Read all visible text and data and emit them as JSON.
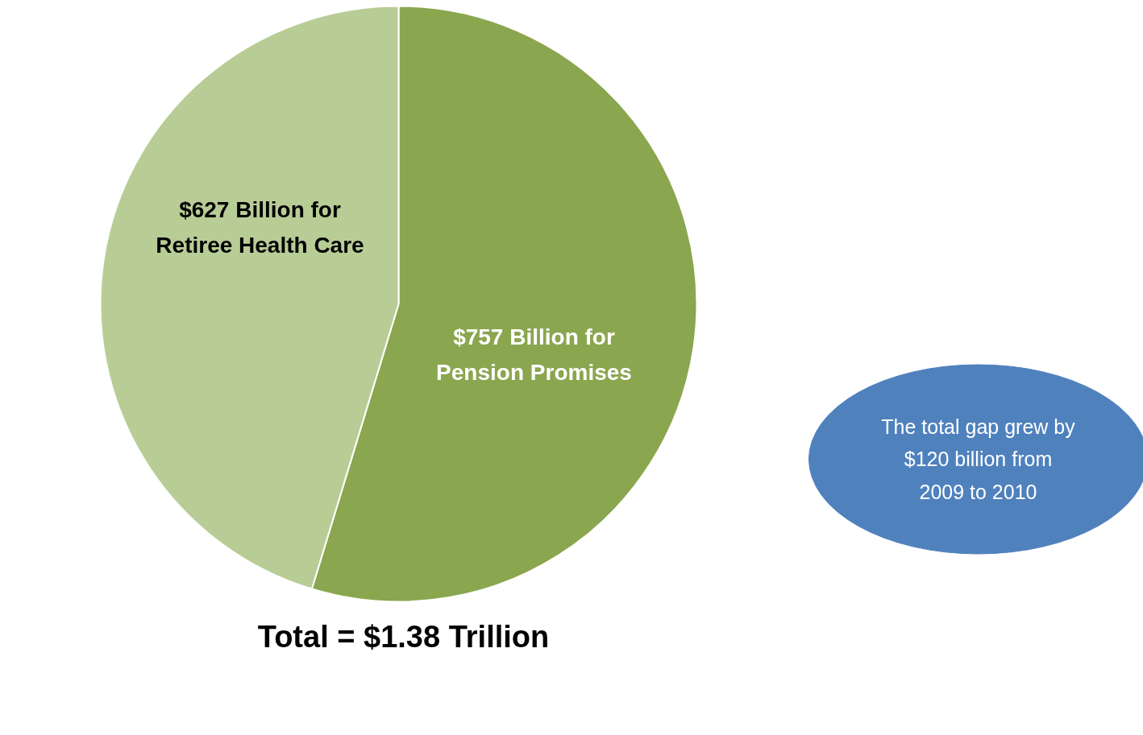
{
  "chart_data": {
    "type": "pie",
    "categories": [
      null,
      null
    ],
    "values": [
      757,
      627
    ],
    "colors": [
      "#8aa64f",
      "#b8cd96"
    ],
    "value_labels": [
      "$757 Billion for\nPension Promises",
      "$627 Billion for\nRetiree Health Care"
    ],
    "annotations": [
      "Total = $1.38 Trillion",
      "The total gap grew by\n$120 billion from\n2009 to 2010"
    ]
  }
}
